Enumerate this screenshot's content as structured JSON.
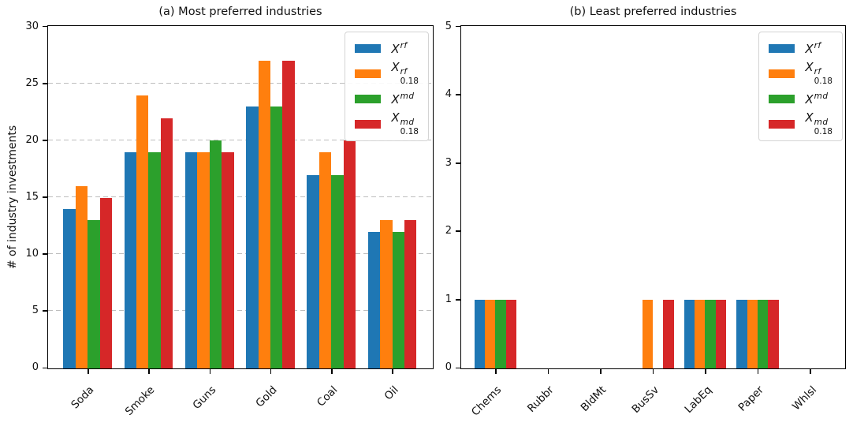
{
  "figure": {
    "background": "#ffffff",
    "text_color": "#111111",
    "grid_color": "#bdbdbd"
  },
  "chart_data": [
    {
      "type": "bar",
      "title": "(a) Most preferred industries",
      "ylabel": "# of industry investments",
      "xlabel": "",
      "categories": [
        "Soda",
        "Smoke",
        "Guns",
        "Gold",
        "Coal",
        "Oil"
      ],
      "series": [
        {
          "name": "X^rf",
          "base": "X",
          "sup": "rf",
          "sub": "",
          "color": "#1f77b4",
          "values": [
            14,
            19,
            19,
            23,
            17,
            12
          ]
        },
        {
          "name": "X^rf_0.18",
          "base": "X",
          "sup": "rf",
          "sub": "0.18",
          "color": "#ff7f0e",
          "values": [
            16,
            24,
            19,
            27,
            19,
            13
          ]
        },
        {
          "name": "X^md",
          "base": "X",
          "sup": "md",
          "sub": "",
          "color": "#2ca02c",
          "values": [
            13,
            19,
            20,
            23,
            17,
            12
          ]
        },
        {
          "name": "X^md_0.18",
          "base": "X",
          "sup": "md",
          "sub": "0.18",
          "color": "#d62728",
          "values": [
            15,
            22,
            19,
            27,
            20,
            13
          ]
        }
      ],
      "ylim": [
        0,
        30
      ],
      "yticks": [
        0,
        5,
        10,
        15,
        20,
        25,
        30
      ],
      "grid": true,
      "legend_position": "upper right",
      "bar_group_width": 0.8,
      "xtick_rotation": 45
    },
    {
      "type": "bar",
      "title": "(b) Least preferred industries",
      "ylabel": "",
      "xlabel": "",
      "categories": [
        "Chems",
        "Rubbr",
        "BldMt",
        "BusSv",
        "LabEq",
        "Paper",
        "Whlsl"
      ],
      "series": [
        {
          "name": "X^rf",
          "base": "X",
          "sup": "rf",
          "sub": "",
          "color": "#1f77b4",
          "values": [
            1,
            0,
            0,
            0,
            1,
            1,
            0
          ]
        },
        {
          "name": "X^rf_0.18",
          "base": "X",
          "sup": "rf",
          "sub": "0.18",
          "color": "#ff7f0e",
          "values": [
            1,
            0,
            0,
            1,
            1,
            1,
            0
          ]
        },
        {
          "name": "X^md",
          "base": "X",
          "sup": "md",
          "sub": "",
          "color": "#2ca02c",
          "values": [
            1,
            0,
            0,
            0,
            1,
            1,
            0
          ]
        },
        {
          "name": "X^md_0.18",
          "base": "X",
          "sup": "md",
          "sub": "0.18",
          "color": "#d62728",
          "values": [
            1,
            0,
            0,
            1,
            1,
            1,
            0
          ]
        }
      ],
      "ylim": [
        0,
        5
      ],
      "yticks": [
        0,
        1,
        2,
        3,
        4,
        5
      ],
      "grid": false,
      "legend_position": "upper right",
      "bar_group_width": 0.8,
      "xtick_rotation": 45
    }
  ]
}
